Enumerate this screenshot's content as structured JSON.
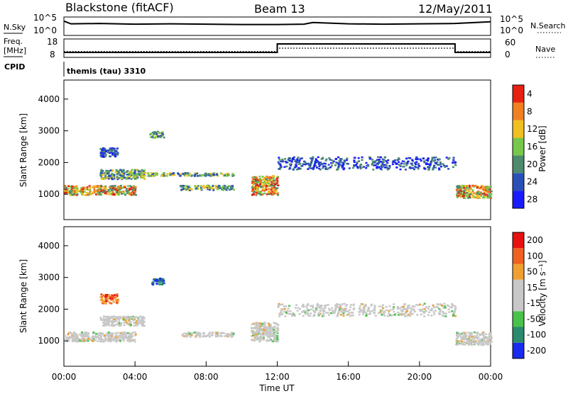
{
  "header": {
    "station": "Blackstone (fitACF)",
    "beam": "Beam 13",
    "date": "12/May/2011"
  },
  "side_labels": {
    "nsky": "N.Sky",
    "nsky_top": "10^5",
    "nsky_bottom": "10^0",
    "nsearch": "N.Search",
    "nsearch_top": "10^5",
    "nsearch_bottom": "10^0",
    "freq_l1": "Freq.",
    "freq_l2": "[MHz]",
    "freq_top": "18",
    "freq_bottom": "8",
    "nave_top": "60",
    "nave_bottom": "0",
    "nave": "Nave",
    "cpid": "CPID",
    "cpid_value": "themis (tau) 3310"
  },
  "chart_data": [
    {
      "type": "line",
      "name": "noise",
      "x_range": [
        0,
        24
      ],
      "series": [
        {
          "name": "N.Sky",
          "values_x": [
            0,
            0.4,
            2,
            4,
            6,
            8,
            10,
            12,
            13.5,
            14,
            16,
            18,
            20,
            22,
            24
          ],
          "values_y": [
            4.0,
            3.2,
            3.3,
            3.1,
            3.2,
            3.1,
            3.0,
            3.0,
            3.1,
            3.6,
            3.2,
            3.1,
            3.2,
            3.3,
            3.8
          ]
        }
      ]
    },
    {
      "type": "line",
      "name": "frequency",
      "x_range": [
        0,
        24
      ],
      "ylim": [
        8,
        18
      ],
      "series": [
        {
          "name": "Freq",
          "values_x": [
            0,
            12,
            12,
            22,
            22,
            24
          ],
          "values_y": [
            10.5,
            10.5,
            15.5,
            15.5,
            10.5,
            10.5
          ]
        },
        {
          "name": "Nave",
          "values_x": [
            0,
            12,
            12,
            22,
            22,
            24
          ],
          "values_y": [
            11,
            11,
            13,
            13,
            11,
            11
          ]
        }
      ]
    },
    {
      "type": "heatmap",
      "name": "power",
      "xlabel": "",
      "ylabel": "Slant Range [km]",
      "x_range": [
        0,
        24
      ],
      "ylim": [
        200,
        4600
      ],
      "yticks": [
        "1000",
        "2000",
        "3000",
        "4000"
      ],
      "colorbar": {
        "label": "Power [dB]",
        "ticks": [
          "4",
          "8",
          "12",
          "16",
          "20",
          "24",
          "28"
        ],
        "colors": [
          "#1a1aff",
          "#2a4fb8",
          "#4d8a6e",
          "#77c74a",
          "#f0c020",
          "#f08020",
          "#e82010"
        ]
      },
      "features": [
        {
          "t0": 0.0,
          "t1": 4.0,
          "r0": 1000,
          "r1": 1300,
          "level": "high"
        },
        {
          "t0": 2.0,
          "t1": 4.5,
          "r0": 1500,
          "r1": 1800,
          "level": "mid"
        },
        {
          "t0": 4.0,
          "t1": 9.5,
          "r0": 1600,
          "r1": 1700,
          "level": "mid"
        },
        {
          "t0": 6.5,
          "t1": 9.5,
          "r0": 1150,
          "r1": 1300,
          "level": "mid"
        },
        {
          "t0": 2.0,
          "t1": 3.0,
          "r0": 2200,
          "r1": 2500,
          "level": "low"
        },
        {
          "t0": 4.8,
          "t1": 5.6,
          "r0": 2800,
          "r1": 3000,
          "level": "mid"
        },
        {
          "t0": 10.5,
          "t1": 12.0,
          "r0": 1000,
          "r1": 1600,
          "level": "high"
        },
        {
          "t0": 12.0,
          "t1": 22.0,
          "r0": 1800,
          "r1": 2200,
          "level": "low"
        },
        {
          "t0": 22.0,
          "t1": 24.0,
          "r0": 900,
          "r1": 1300,
          "level": "high"
        }
      ]
    },
    {
      "type": "heatmap",
      "name": "velocity",
      "xlabel": "Time UT",
      "ylabel": "Slant Range [km]",
      "x_range": [
        0,
        24
      ],
      "ylim": [
        200,
        4600
      ],
      "xticks": [
        "00:00",
        "04:00",
        "08:00",
        "12:00",
        "16:00",
        "20:00",
        "00:00"
      ],
      "yticks": [
        "1000",
        "2000",
        "3000",
        "4000"
      ],
      "colorbar": {
        "label": "Velocity [m s⁻¹]",
        "ticks": [
          "200",
          "100",
          "50",
          "15",
          "-15",
          "-50",
          "-100",
          "-200"
        ],
        "colors": [
          "#1a2aee",
          "#2a8a6e",
          "#48c248",
          "#c8c8c8",
          "#c8c8c8",
          "#f0a030",
          "#f06020",
          "#e81010"
        ]
      },
      "features": [
        {
          "t0": 0.0,
          "t1": 4.0,
          "r0": 1000,
          "r1": 1300,
          "level": "ground"
        },
        {
          "t0": 2.0,
          "t1": 4.5,
          "r0": 1500,
          "r1": 1800,
          "level": "ground"
        },
        {
          "t0": 2.0,
          "t1": 3.0,
          "r0": 2200,
          "r1": 2500,
          "level": "neg"
        },
        {
          "t0": 4.8,
          "t1": 5.6,
          "r0": 2800,
          "r1": 3000,
          "level": "pos"
        },
        {
          "t0": 6.5,
          "t1": 9.5,
          "r0": 1150,
          "r1": 1300,
          "level": "ground"
        },
        {
          "t0": 10.5,
          "t1": 12.0,
          "r0": 1000,
          "r1": 1600,
          "level": "ground"
        },
        {
          "t0": 12.0,
          "t1": 22.0,
          "r0": 1800,
          "r1": 2200,
          "level": "ground"
        },
        {
          "t0": 22.0,
          "t1": 24.0,
          "r0": 900,
          "r1": 1300,
          "level": "ground"
        }
      ]
    }
  ]
}
